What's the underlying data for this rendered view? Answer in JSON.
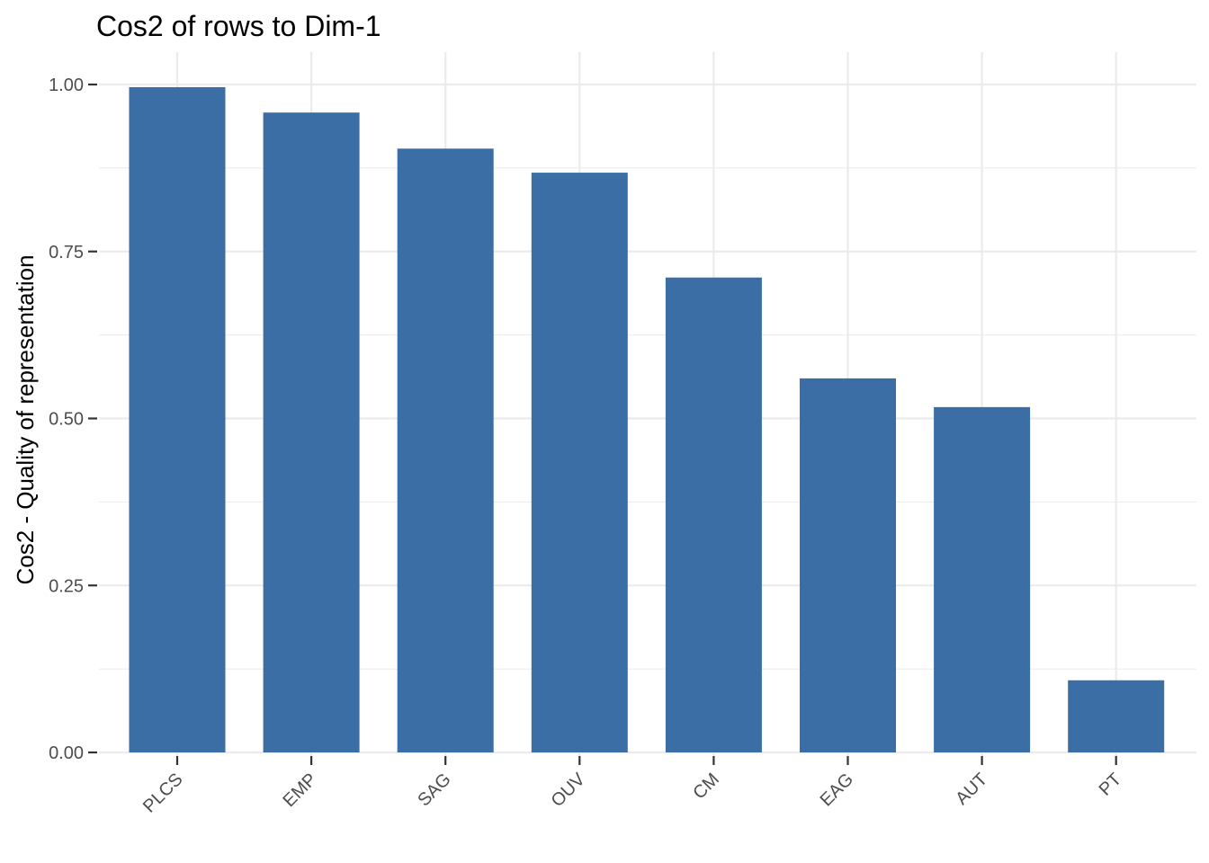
{
  "chart_data": {
    "type": "bar",
    "title": "Cos2 of rows to Dim-1",
    "xlabel": "",
    "ylabel": "Cos2 - Quality of representation",
    "categories": [
      "PLCS",
      "EMP",
      "SAG",
      "OUV",
      "CM",
      "EAG",
      "AUT",
      "PT"
    ],
    "values": [
      0.996,
      0.958,
      0.904,
      0.868,
      0.711,
      0.56,
      0.517,
      0.108
    ],
    "ylim": [
      0,
      1.0
    ],
    "yticks": [
      0.0,
      0.25,
      0.5,
      0.75,
      1.0
    ],
    "ytick_labels": [
      "0.00",
      "0.25",
      "0.50",
      "0.75",
      "1.00"
    ],
    "grid": true,
    "bar_color": "#3A6EA5"
  }
}
